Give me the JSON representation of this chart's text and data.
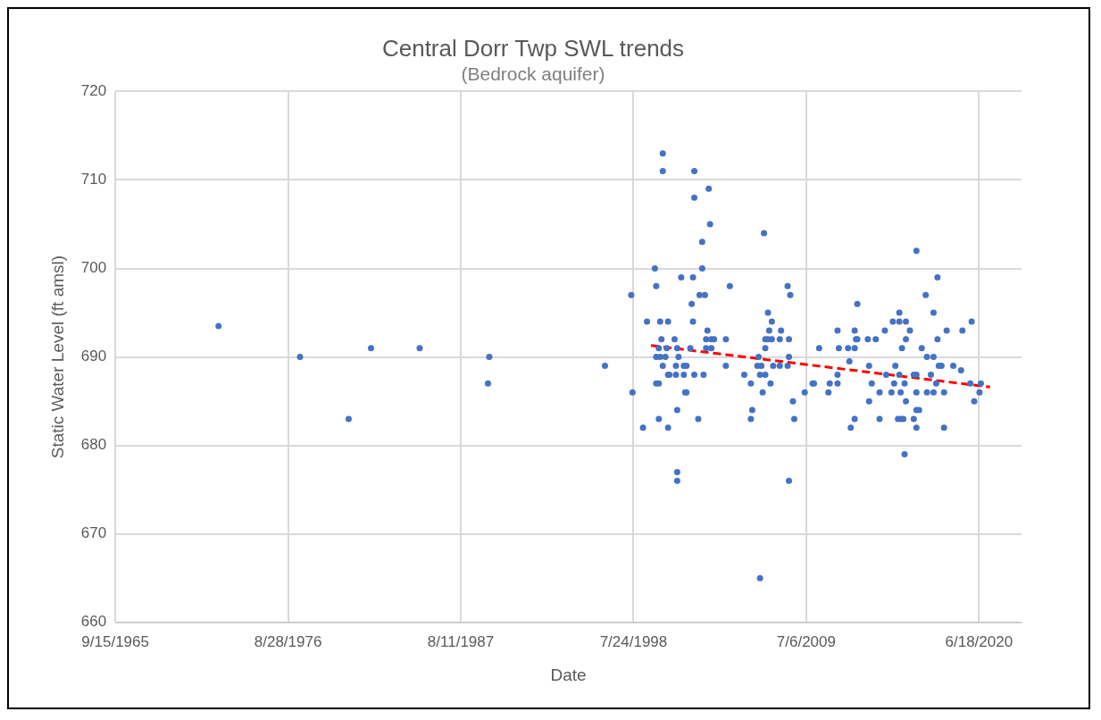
{
  "chart_data": {
    "type": "scatter",
    "title": "Central Dorr Twp SWL trends",
    "subtitle": "(Bedrock aquifer)",
    "xlabel": "Date",
    "ylabel": "Static Water Level (ft amsl)",
    "xlim": [
      "1965-09-15",
      "2023-03"
    ],
    "xticks": [
      {
        "value": "1965-09-15",
        "label": "9/15/1965"
      },
      {
        "value": "1976-08-28",
        "label": "8/28/1976"
      },
      {
        "value": "1987-08-11",
        "label": "8/11/1987"
      },
      {
        "value": "1998-07-24",
        "label": "7/24/1998"
      },
      {
        "value": "2009-07-06",
        "label": "7/6/2009"
      },
      {
        "value": "2020-06-18",
        "label": "6/18/2020"
      }
    ],
    "ylim": [
      660,
      720
    ],
    "yticks": [
      660,
      670,
      680,
      690,
      700,
      710,
      720
    ],
    "grid": true,
    "legend": false,
    "series": [
      {
        "color": "#4472c4",
        "marker": "circle",
        "x": [
          "1972-04",
          "1977-06",
          "1980-07",
          "1981-12",
          "1985-01",
          "1989-06",
          "1989-05",
          "1996-10",
          "1998-06",
          "1998-07",
          "1999-03",
          "1999-06",
          "1999-12",
          "2000-01",
          "2000-01",
          "2000-01",
          "2000-03",
          "2000-03",
          "2000-03",
          "2000-04",
          "2000-04",
          "2000-05",
          "2000-06",
          "2000-06",
          "2000-06",
          "2000-08",
          "2000-09",
          "2000-10",
          "2000-10",
          "2000-10",
          "2000-11",
          "2001-03",
          "2001-04",
          "2001-04",
          "2001-05",
          "2001-05",
          "2001-05",
          "2001-05",
          "2001-06",
          "2001-08",
          "2001-10",
          "2001-10",
          "2001-11",
          "2001-12",
          "2001-12",
          "2002-03",
          "2002-04",
          "2002-05",
          "2002-05",
          "2002-06",
          "2002-06",
          "2002-06",
          "2002-09",
          "2002-10",
          "2002-12",
          "2002-12",
          "2003-01",
          "2003-02",
          "2003-03",
          "2003-03",
          "2003-04",
          "2003-05",
          "2003-06",
          "2003-07",
          "2003-07",
          "2003-09",
          "2004-06",
          "2004-06",
          "2004-09",
          "2005-08",
          "2006-01",
          "2006-01",
          "2006-02",
          "2006-06",
          "2006-07",
          "2006-08",
          "2006-08",
          "2006-09",
          "2006-10",
          "2006-11",
          "2006-12",
          "2006-12",
          "2006-12",
          "2007-02",
          "2007-02",
          "2007-03",
          "2007-04",
          "2007-05",
          "2007-05",
          "2007-06",
          "2007-11",
          "2007-11",
          "2007-12",
          "2008-05",
          "2008-05",
          "2008-06",
          "2008-06",
          "2008-06",
          "2008-07",
          "2008-09",
          "2008-10",
          "2009-06",
          "2009-12",
          "2010-01",
          "2010-05",
          "2010-12",
          "2011-01",
          "2011-07",
          "2011-07",
          "2011-07",
          "2011-08",
          "2012-03",
          "2012-04",
          "2012-05",
          "2012-08",
          "2012-08",
          "2012-08",
          "2012-09",
          "2012-10",
          "2012-10",
          "2013-06",
          "2013-07",
          "2013-07",
          "2013-09",
          "2013-12",
          "2014-03",
          "2014-03",
          "2014-07",
          "2014-08",
          "2014-12",
          "2015-01",
          "2015-02",
          "2015-03",
          "2015-05",
          "2015-06",
          "2015-06",
          "2015-06",
          "2015-07",
          "2015-07",
          "2015-08",
          "2015-09",
          "2015-10",
          "2015-10",
          "2015-11",
          "2015-11",
          "2015-11",
          "2016-02",
          "2016-05",
          "2016-05",
          "2016-07",
          "2016-07",
          "2016-07",
          "2016-07",
          "2016-07",
          "2016-09",
          "2016-11",
          "2017-02",
          "2017-03",
          "2017-03",
          "2017-06",
          "2017-08",
          "2017-08",
          "2017-08",
          "2017-10",
          "2017-11",
          "2017-11",
          "2017-12",
          "2018-02",
          "2018-04",
          "2018-04",
          "2018-06",
          "2018-11",
          "2019-05",
          "2019-06",
          "2019-12",
          "2020-01",
          "2020-03",
          "2020-07",
          "2020-08"
        ],
        "values": [
          693.5,
          690,
          683,
          691,
          691,
          690,
          687,
          689,
          697,
          686,
          682,
          694,
          700,
          698,
          690,
          687,
          683,
          691,
          687,
          690,
          694,
          692,
          713,
          711,
          689,
          690,
          691,
          688,
          694,
          682,
          688,
          692,
          689,
          688,
          691,
          684,
          677,
          676,
          690,
          699,
          688,
          689,
          686,
          689,
          686,
          691,
          696,
          699,
          694,
          711,
          708,
          688,
          683,
          697,
          703,
          700,
          688,
          697,
          692,
          691,
          693,
          709,
          705,
          691,
          692,
          692,
          692,
          689,
          698,
          688,
          687,
          683,
          684,
          689,
          690,
          688,
          665,
          689,
          686,
          704,
          688,
          692,
          691,
          695,
          692,
          693,
          687,
          694,
          692,
          689,
          692,
          689,
          693,
          689,
          698,
          692,
          690,
          676,
          697,
          685,
          683,
          686,
          687,
          687,
          691,
          686,
          687,
          693,
          688,
          687,
          691,
          691,
          689.5,
          682,
          693,
          691,
          683,
          692,
          696,
          692,
          692,
          689,
          685,
          687,
          692,
          686,
          683,
          693,
          688,
          686,
          694,
          687,
          689,
          683,
          695,
          694,
          688,
          686,
          683,
          691,
          683,
          687,
          679,
          692,
          685,
          694,
          693,
          683,
          688,
          686,
          684,
          682,
          702,
          688,
          684,
          691,
          697,
          686,
          690,
          688,
          695,
          690,
          686,
          687,
          692,
          699,
          689,
          689,
          686,
          682,
          693,
          689,
          688.5,
          693,
          687,
          694,
          685,
          686,
          687
        ]
      },
      {
        "type": "line",
        "color": "#ff0000",
        "marker": "none",
        "line_style": "dashed",
        "x": [
          "1999-09",
          "2021-03"
        ],
        "values": [
          691.3,
          686.6
        ]
      }
    ]
  }
}
